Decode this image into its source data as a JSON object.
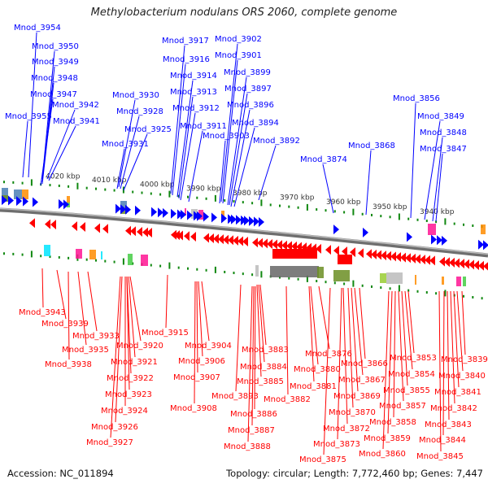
{
  "title": "Methylobacterium nodulans ORS 2060, complete genome",
  "footer": {
    "accession": "Accession: NC_011894",
    "summary": "Topology: circular; Length: 7,772,460 bp; Genes: 7,447"
  },
  "colors": {
    "forward_strand": "#0000ff",
    "reverse_strand": "#ff0000",
    "tick": "#118811",
    "backbone": "#777777"
  },
  "scale_labels": [
    "4020 kbp",
    "4010 kbp",
    "4000 kbp",
    "3990 kbp",
    "3980 kbp",
    "3970 kbp",
    "3960 kbp",
    "3950 kbp",
    "3940 kbp"
  ],
  "forward_genes": [
    {
      "label": "Mnod_3954"
    },
    {
      "label": "Mnod_3950"
    },
    {
      "label": "Mnod_3949"
    },
    {
      "label": "Mnod_3948"
    },
    {
      "label": "Mnod_3947"
    },
    {
      "label": "Mnod_3955"
    },
    {
      "label": "Mnod_3942"
    },
    {
      "label": "Mnod_3941"
    },
    {
      "label": "Mnod_3930"
    },
    {
      "label": "Mnod_3928"
    },
    {
      "label": "Mnod_3925"
    },
    {
      "label": "Mnod_3931"
    },
    {
      "label": "Mnod_3917"
    },
    {
      "label": "Mnod_3916"
    },
    {
      "label": "Mnod_3914"
    },
    {
      "label": "Mnod_3913"
    },
    {
      "label": "Mnod_3912"
    },
    {
      "label": "Mnod_3911"
    },
    {
      "label": "Mnod_3902"
    },
    {
      "label": "Mnod_3901"
    },
    {
      "label": "Mnod_3899"
    },
    {
      "label": "Mnod_3897"
    },
    {
      "label": "Mnod_3896"
    },
    {
      "label": "Mnod_3894"
    },
    {
      "label": "Mnod_3903"
    },
    {
      "label": "Mnod_3892"
    },
    {
      "label": "Mnod_3874"
    },
    {
      "label": "Mnod_3868"
    },
    {
      "label": "Mnod_3856"
    },
    {
      "label": "Mnod_3849"
    },
    {
      "label": "Mnod_3848"
    },
    {
      "label": "Mnod_3847"
    }
  ],
  "reverse_genes": [
    {
      "label": "Mnod_3943"
    },
    {
      "label": "Mnod_3939"
    },
    {
      "label": "Mnod_3933"
    },
    {
      "label": "Mnod_3935"
    },
    {
      "label": "Mnod_3938"
    },
    {
      "label": "Mnod_3915"
    },
    {
      "label": "Mnod_3920"
    },
    {
      "label": "Mnod_3921"
    },
    {
      "label": "Mnod_3922"
    },
    {
      "label": "Mnod_3923"
    },
    {
      "label": "Mnod_3924"
    },
    {
      "label": "Mnod_3926"
    },
    {
      "label": "Mnod_3927"
    },
    {
      "label": "Mnod_3904"
    },
    {
      "label": "Mnod_3906"
    },
    {
      "label": "Mnod_3907"
    },
    {
      "label": "Mnod_3908"
    },
    {
      "label": "Mnod_3883"
    },
    {
      "label": "Mnod_3884"
    },
    {
      "label": "Mnod_3885"
    },
    {
      "label": "Mnod_3893"
    },
    {
      "label": "Mnod_3886"
    },
    {
      "label": "Mnod_3887"
    },
    {
      "label": "Mnod_3888"
    },
    {
      "label": "Mnod_3882"
    },
    {
      "label": "Mnod_3876"
    },
    {
      "label": "Mnod_3880"
    },
    {
      "label": "Mnod_3881"
    },
    {
      "label": "Mnod_3866"
    },
    {
      "label": "Mnod_3867"
    },
    {
      "label": "Mnod_3869"
    },
    {
      "label": "Mnod_3870"
    },
    {
      "label": "Mnod_3872"
    },
    {
      "label": "Mnod_3873"
    },
    {
      "label": "Mnod_3875"
    },
    {
      "label": "Mnod_3853"
    },
    {
      "label": "Mnod_3854"
    },
    {
      "label": "Mnod_3855"
    },
    {
      "label": "Mnod_3857"
    },
    {
      "label": "Mnod_3858"
    },
    {
      "label": "Mnod_3859"
    },
    {
      "label": "Mnod_3860"
    },
    {
      "label": "Mnod_3839"
    },
    {
      "label": "Mnod_3840"
    },
    {
      "label": "Mnod_3841"
    },
    {
      "label": "Mnod_3842"
    },
    {
      "label": "Mnod_3843"
    },
    {
      "label": "Mnod_3844"
    },
    {
      "label": "Mnod_3845"
    }
  ]
}
